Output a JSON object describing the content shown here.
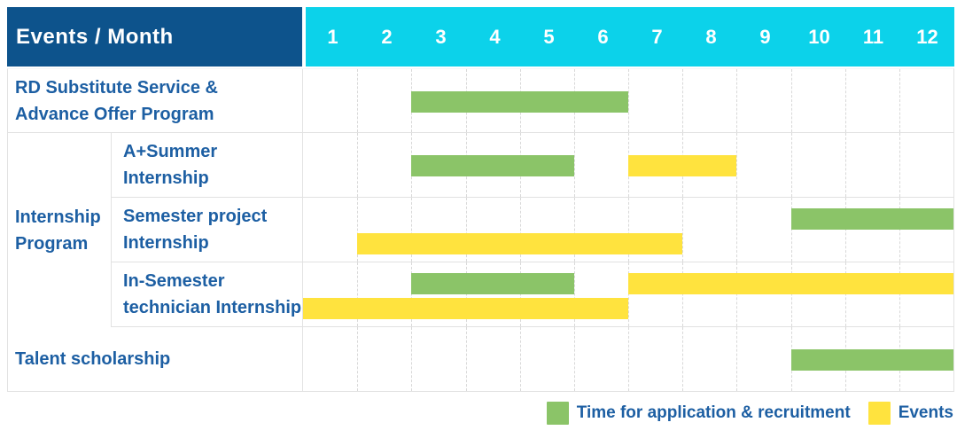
{
  "header": {
    "title": "Events / Month",
    "months": [
      "1",
      "2",
      "3",
      "4",
      "5",
      "6",
      "7",
      "8",
      "9",
      "10",
      "11",
      "12"
    ]
  },
  "colors": {
    "header_bg": "#0d538c",
    "months_bg": "#0cd2ea",
    "label_text": "#1d5fa3",
    "application_green": "#8bc468",
    "events_yellow": "#ffe33e",
    "grid": "#e2e2e2"
  },
  "chart_data": {
    "type": "gantt",
    "unit": "month",
    "x_range": [
      1,
      12
    ],
    "x_ticks": [
      "1",
      "2",
      "3",
      "4",
      "5",
      "6",
      "7",
      "8",
      "9",
      "10",
      "11",
      "12"
    ],
    "legend": [
      {
        "key": "application",
        "label": "Time for application & recruitment",
        "color": "#8bc468"
      },
      {
        "key": "events",
        "label": "Events",
        "color": "#ffe33e"
      }
    ],
    "rows": [
      {
        "id": "rd-substitute-advance-offer",
        "label_lines": [
          "RD Substitute Service &",
          "Advance Offer Program"
        ],
        "bars": [
          {
            "type": "application",
            "start_month": 3,
            "end_month": 6,
            "lane": "center"
          }
        ]
      },
      {
        "id": "internship-program",
        "group_label_lines": [
          "Internship",
          "Program"
        ],
        "children": [
          {
            "id": "a-plus-summer-internship",
            "label_lines": [
              "A+Summer",
              "Internship"
            ],
            "bars": [
              {
                "type": "application",
                "start_month": 3,
                "end_month": 5,
                "lane": "center"
              },
              {
                "type": "events",
                "start_month": 7,
                "end_month": 8,
                "lane": "center"
              }
            ]
          },
          {
            "id": "semester-project-internship",
            "label_lines": [
              "Semester project",
              "Internship"
            ],
            "bars": [
              {
                "type": "application",
                "start_month": 10,
                "end_month": 12,
                "lane": "top"
              },
              {
                "type": "events",
                "start_month": 2,
                "end_month": 7,
                "lane": "bottom"
              }
            ]
          },
          {
            "id": "in-semester-technician-internship",
            "label_lines": [
              "In-Semester",
              "technician Internship"
            ],
            "bars": [
              {
                "type": "application",
                "start_month": 3,
                "end_month": 5,
                "lane": "top"
              },
              {
                "type": "events",
                "start_month": 7,
                "end_month": 12,
                "lane": "top"
              },
              {
                "type": "events",
                "start_month": 1,
                "end_month": 6,
                "lane": "bottom"
              }
            ]
          }
        ]
      },
      {
        "id": "talent-scholarship",
        "label_lines": [
          "Talent scholarship"
        ],
        "bars": [
          {
            "type": "application",
            "start_month": 10,
            "end_month": 12,
            "lane": "center"
          }
        ]
      }
    ]
  }
}
